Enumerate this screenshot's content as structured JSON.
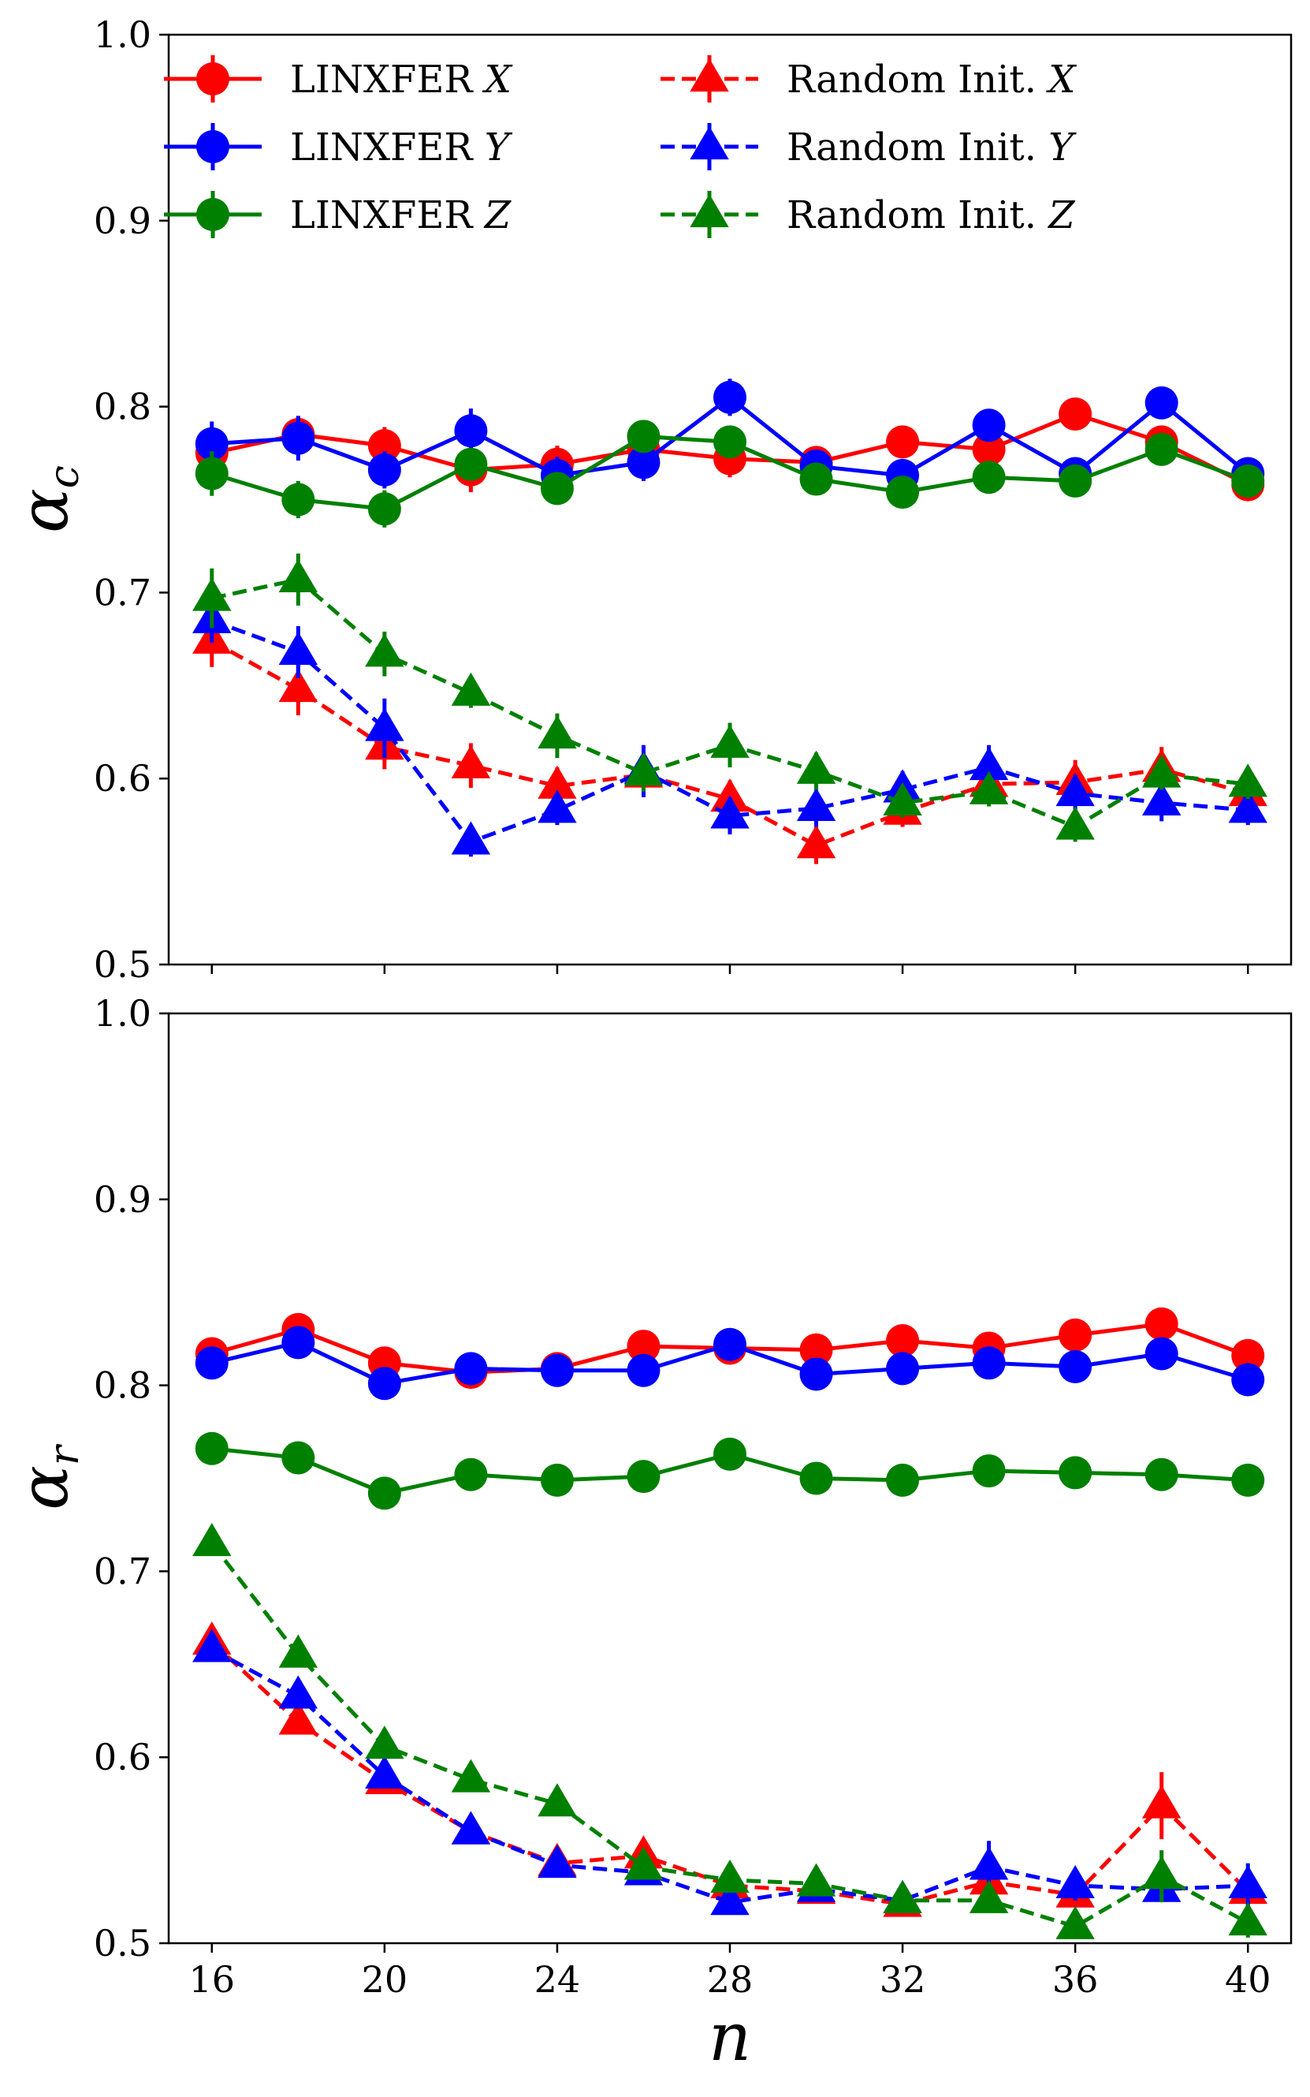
{
  "colors": {
    "X": "#ff0000",
    "Y": "#0000ff",
    "Z": "#008000"
  },
  "chart_data": [
    {
      "type": "line",
      "panel": "top",
      "ylabel_main": "α",
      "ylabel_sub": "c",
      "xlabel": "",
      "ylim": [
        0.5,
        1.0
      ],
      "xlim": [
        15,
        41
      ],
      "yticks": [
        "0.5",
        "0.6",
        "0.7",
        "0.8",
        "0.9",
        "1.0"
      ],
      "x": [
        16,
        18,
        20,
        22,
        24,
        26,
        28,
        30,
        32,
        34,
        36,
        38,
        40
      ],
      "series": [
        {
          "name": "LINXFER X",
          "var": "X",
          "style": "solid",
          "marker": "circle",
          "values": [
            0.775,
            0.785,
            0.779,
            0.766,
            0.769,
            0.777,
            0.772,
            0.77,
            0.781,
            0.777,
            0.796,
            0.781,
            0.758
          ],
          "errors": [
            0.012,
            0.01,
            0.01,
            0.012,
            0.01,
            0.01,
            0.01,
            0.008,
            0.008,
            0.008,
            0.008,
            0.008,
            0.008
          ]
        },
        {
          "name": "LINXFER Y",
          "var": "Y",
          "style": "solid",
          "marker": "circle",
          "values": [
            0.78,
            0.783,
            0.766,
            0.787,
            0.763,
            0.77,
            0.805,
            0.768,
            0.763,
            0.79,
            0.764,
            0.802,
            0.764
          ],
          "errors": [
            0.012,
            0.012,
            0.01,
            0.012,
            0.01,
            0.01,
            0.01,
            0.008,
            0.008,
            0.008,
            0.008,
            0.008,
            0.008
          ]
        },
        {
          "name": "LINXFER Z",
          "var": "Z",
          "style": "solid",
          "marker": "circle",
          "values": [
            0.764,
            0.75,
            0.745,
            0.769,
            0.756,
            0.784,
            0.781,
            0.761,
            0.754,
            0.762,
            0.76,
            0.777,
            0.76
          ],
          "errors": [
            0.012,
            0.01,
            0.01,
            0.008,
            0.008,
            0.008,
            0.008,
            0.008,
            0.008,
            0.008,
            0.008,
            0.008,
            0.008
          ]
        },
        {
          "name": "Random Init. X",
          "var": "X",
          "style": "dashed",
          "marker": "triangle",
          "values": [
            0.674,
            0.648,
            0.617,
            0.607,
            0.596,
            0.602,
            0.589,
            0.564,
            0.582,
            0.597,
            0.598,
            0.605,
            0.592
          ],
          "errors": [
            0.014,
            0.014,
            0.012,
            0.012,
            0.01,
            0.012,
            0.01,
            0.01,
            0.008,
            0.008,
            0.012,
            0.012,
            0.01
          ]
        },
        {
          "name": "Random Init. Y",
          "var": "Y",
          "style": "dashed",
          "marker": "triangle",
          "values": [
            0.685,
            0.668,
            0.627,
            0.566,
            0.583,
            0.604,
            0.58,
            0.584,
            0.594,
            0.606,
            0.592,
            0.587,
            0.583
          ],
          "errors": [
            0.012,
            0.014,
            0.016,
            0.008,
            0.008,
            0.014,
            0.01,
            0.01,
            0.01,
            0.012,
            0.01,
            0.01,
            0.008
          ]
        },
        {
          "name": "Random Init. Z",
          "var": "Z",
          "style": "dashed",
          "marker": "triangle",
          "values": [
            0.697,
            0.707,
            0.667,
            0.646,
            0.623,
            0.603,
            0.618,
            0.604,
            0.587,
            0.593,
            0.574,
            0.602,
            0.597
          ],
          "errors": [
            0.016,
            0.014,
            0.012,
            0.008,
            0.012,
            0.01,
            0.012,
            0.01,
            0.008,
            0.008,
            0.008,
            0.008,
            0.008
          ]
        }
      ],
      "legend": {
        "placement": "top",
        "entries": [
          {
            "label": "LINXFER ",
            "var": "X"
          },
          {
            "label": "LINXFER ",
            "var": "Y"
          },
          {
            "label": "LINXFER ",
            "var": "Z"
          },
          {
            "label": "Random Init. ",
            "var": "X"
          },
          {
            "label": "Random Init. ",
            "var": "Y"
          },
          {
            "label": "Random Init. ",
            "var": "Z"
          }
        ]
      }
    },
    {
      "type": "line",
      "panel": "bottom",
      "ylabel_main": "α",
      "ylabel_sub": "r",
      "xlabel": "n",
      "ylim": [
        0.5,
        1.0
      ],
      "xlim": [
        15,
        41
      ],
      "yticks": [
        "0.5",
        "0.6",
        "0.7",
        "0.8",
        "0.9",
        "1.0"
      ],
      "xticks": [
        "16",
        "20",
        "24",
        "28",
        "32",
        "36",
        "40"
      ],
      "x": [
        16,
        18,
        20,
        22,
        24,
        26,
        28,
        30,
        32,
        34,
        36,
        38,
        40
      ],
      "series": [
        {
          "name": "LINXFER X",
          "var": "X",
          "style": "solid",
          "marker": "circle",
          "values": [
            0.817,
            0.83,
            0.812,
            0.807,
            0.809,
            0.821,
            0.82,
            0.819,
            0.824,
            0.82,
            0.827,
            0.833,
            0.816
          ],
          "errors": [
            0.004,
            0.004,
            0.004,
            0.004,
            0.004,
            0.004,
            0.004,
            0.004,
            0.004,
            0.004,
            0.004,
            0.004,
            0.004
          ]
        },
        {
          "name": "LINXFER Y",
          "var": "Y",
          "style": "solid",
          "marker": "circle",
          "values": [
            0.812,
            0.823,
            0.801,
            0.809,
            0.808,
            0.808,
            0.822,
            0.806,
            0.809,
            0.812,
            0.81,
            0.817,
            0.803
          ],
          "errors": [
            0.004,
            0.004,
            0.004,
            0.004,
            0.004,
            0.004,
            0.004,
            0.004,
            0.004,
            0.004,
            0.004,
            0.004,
            0.004
          ]
        },
        {
          "name": "LINXFER Z",
          "var": "Z",
          "style": "solid",
          "marker": "circle",
          "values": [
            0.766,
            0.761,
            0.742,
            0.752,
            0.749,
            0.751,
            0.763,
            0.75,
            0.749,
            0.754,
            0.753,
            0.752,
            0.749
          ],
          "errors": [
            0.004,
            0.004,
            0.004,
            0.004,
            0.004,
            0.004,
            0.004,
            0.004,
            0.004,
            0.004,
            0.004,
            0.004,
            0.004
          ]
        },
        {
          "name": "Random Init. X",
          "var": "X",
          "style": "dashed",
          "marker": "triangle",
          "values": [
            0.662,
            0.619,
            0.587,
            0.56,
            0.543,
            0.547,
            0.531,
            0.528,
            0.521,
            0.533,
            0.526,
            0.574,
            0.528
          ],
          "errors": [
            0.004,
            0.004,
            0.004,
            0.004,
            0.004,
            0.006,
            0.004,
            0.004,
            0.004,
            0.008,
            0.006,
            0.018,
            0.01
          ]
        },
        {
          "name": "Random Init. Y",
          "var": "Y",
          "style": "dashed",
          "marker": "triangle",
          "values": [
            0.658,
            0.633,
            0.59,
            0.56,
            0.542,
            0.538,
            0.522,
            0.529,
            0.523,
            0.541,
            0.531,
            0.529,
            0.531
          ],
          "errors": [
            0.004,
            0.004,
            0.004,
            0.004,
            0.004,
            0.004,
            0.004,
            0.004,
            0.004,
            0.014,
            0.008,
            0.006,
            0.012
          ]
        },
        {
          "name": "Random Init. Z",
          "var": "Z",
          "style": "dashed",
          "marker": "triangle",
          "values": [
            0.715,
            0.655,
            0.606,
            0.588,
            0.575,
            0.541,
            0.534,
            0.532,
            0.523,
            0.523,
            0.509,
            0.536,
            0.511
          ],
          "errors": [
            0.004,
            0.004,
            0.004,
            0.004,
            0.004,
            0.004,
            0.004,
            0.004,
            0.004,
            0.004,
            0.004,
            0.014,
            0.008
          ]
        }
      ]
    }
  ]
}
